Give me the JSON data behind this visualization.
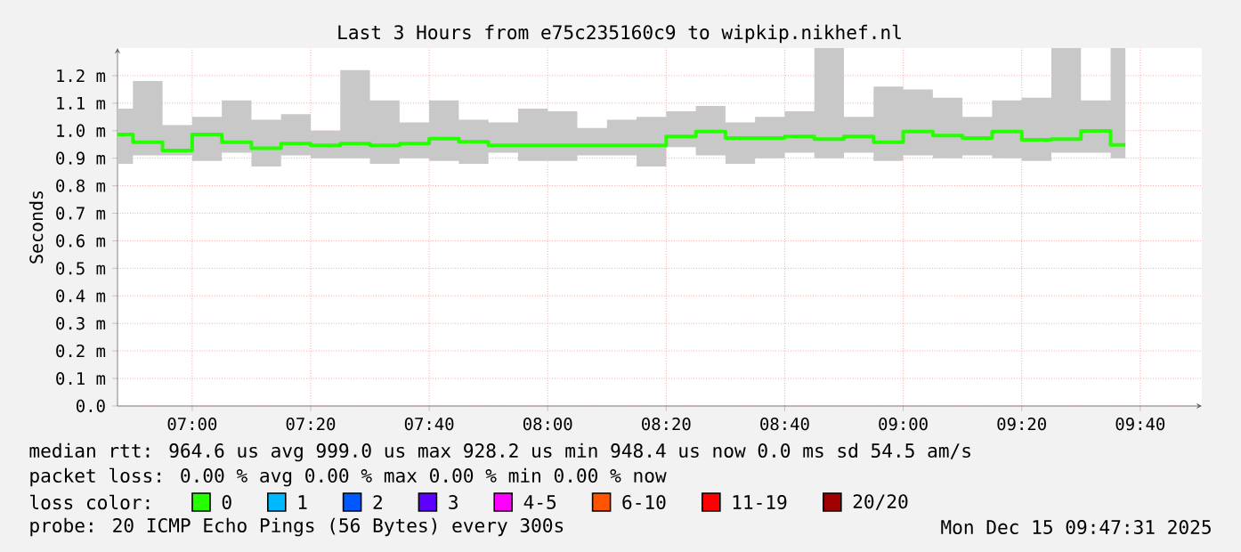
{
  "chart_data": {
    "type": "step",
    "title": "Last 3 Hours from e75c235160c9 to wipkip.nikhef.nl",
    "ylabel": "Seconds",
    "legend_title": "loss color:",
    "legend": "bottom",
    "grid": true,
    "marker": "none",
    "line_style": "solid",
    "x": [
      6.7917,
      6.875,
      6.9583,
      7.0417,
      7.125,
      7.2083,
      7.2917,
      7.375,
      7.4583,
      7.5417,
      7.625,
      7.7083,
      7.7917,
      7.875,
      7.9583,
      8.0417,
      8.125,
      8.2083,
      8.2917,
      8.375,
      8.4583,
      8.5417,
      8.625,
      8.7083,
      8.7917,
      8.875,
      8.9583,
      9.0417,
      9.125,
      9.2083,
      9.2917,
      9.375,
      9.4583,
      9.5417,
      9.625
    ],
    "xlim": [
      6.79,
      9.84
    ],
    "xticks": [
      {
        "value": 7,
        "label": "07:00"
      },
      {
        "value": 7.3333,
        "label": "07:20"
      },
      {
        "value": 7.6667,
        "label": "07:40"
      },
      {
        "value": 8,
        "label": "08:00"
      },
      {
        "value": 8.3333,
        "label": "08:20"
      },
      {
        "value": 8.6667,
        "label": "08:40"
      },
      {
        "value": 9,
        "label": "09:00"
      },
      {
        "value": 9.3333,
        "label": "09:20"
      },
      {
        "value": 9.6667,
        "label": "09:40"
      }
    ],
    "ylim": [
      0,
      1.3
    ],
    "yticks": [
      {
        "value": 0,
        "label": "0.0"
      },
      {
        "value": 0.1,
        "label": "0.1 m"
      },
      {
        "value": 0.2,
        "label": "0.2 m"
      },
      {
        "value": 0.3,
        "label": "0.3 m"
      },
      {
        "value": 0.4,
        "label": "0.4 m"
      },
      {
        "value": 0.5,
        "label": "0.5 m"
      },
      {
        "value": 0.6,
        "label": "0.6 m"
      },
      {
        "value": 0.7,
        "label": "0.7 m"
      },
      {
        "value": 0.8,
        "label": "0.8 m"
      },
      {
        "value": 0.9,
        "label": "0.9 m"
      },
      {
        "value": 1.0,
        "label": "1.0 m"
      },
      {
        "value": 1.1,
        "label": "1.1 m"
      },
      {
        "value": 1.2,
        "label": "1.2 m"
      }
    ],
    "series": [
      {
        "name": "0",
        "color": "#26ff00",
        "values": [
          0.986,
          0.958,
          0.928,
          0.986,
          0.958,
          0.936,
          0.953,
          0.947,
          0.953,
          0.947,
          0.953,
          0.971,
          0.96,
          0.947,
          0.947,
          0.947,
          0.947,
          0.947,
          0.947,
          0.979,
          0.997,
          0.973,
          0.973,
          0.979,
          0.969,
          0.979,
          0.958,
          0.997,
          0.982,
          0.973,
          0.997,
          0.967,
          0.969,
          0.999,
          0.948
        ],
        "upper": [
          1.08,
          1.18,
          1.02,
          1.05,
          1.11,
          1.04,
          1.06,
          1.0,
          1.22,
          1.11,
          1.03,
          1.11,
          1.04,
          1.03,
          1.08,
          1.07,
          1.01,
          1.04,
          1.05,
          1.07,
          1.09,
          1.03,
          1.05,
          1.07,
          1.3,
          1.05,
          1.16,
          1.15,
          1.12,
          1.05,
          1.11,
          1.12,
          1.3,
          1.11,
          1.3
        ],
        "lower": [
          0.88,
          0.91,
          0.91,
          0.89,
          0.92,
          0.87,
          0.91,
          0.9,
          0.9,
          0.88,
          0.9,
          0.89,
          0.88,
          0.92,
          0.89,
          0.89,
          0.91,
          0.91,
          0.87,
          0.94,
          0.91,
          0.88,
          0.9,
          0.92,
          0.9,
          0.92,
          0.89,
          0.91,
          0.9,
          0.91,
          0.9,
          0.89,
          0.92,
          0.92,
          0.9
        ]
      },
      {
        "name": "1",
        "color": "#00b8ff",
        "values": [
          null,
          null,
          null,
          null,
          null,
          null,
          null,
          null,
          null,
          null,
          null,
          null,
          null,
          null,
          null,
          null,
          null,
          null,
          null,
          null,
          null,
          null,
          null,
          null,
          null,
          null,
          null,
          null,
          null,
          null,
          null,
          null,
          null,
          null,
          null
        ]
      },
      {
        "name": "2",
        "color": "#0059ff",
        "values": [
          null,
          null,
          null,
          null,
          null,
          null,
          null,
          null,
          null,
          null,
          null,
          null,
          null,
          null,
          null,
          null,
          null,
          null,
          null,
          null,
          null,
          null,
          null,
          null,
          null,
          null,
          null,
          null,
          null,
          null,
          null,
          null,
          null,
          null,
          null
        ]
      },
      {
        "name": "3",
        "color": "#5e00ff",
        "values": [
          null,
          null,
          null,
          null,
          null,
          null,
          null,
          null,
          null,
          null,
          null,
          null,
          null,
          null,
          null,
          null,
          null,
          null,
          null,
          null,
          null,
          null,
          null,
          null,
          null,
          null,
          null,
          null,
          null,
          null,
          null,
          null,
          null,
          null,
          null
        ]
      },
      {
        "name": "4-5",
        "color": "#ff00ff",
        "values": [
          null,
          null,
          null,
          null,
          null,
          null,
          null,
          null,
          null,
          null,
          null,
          null,
          null,
          null,
          null,
          null,
          null,
          null,
          null,
          null,
          null,
          null,
          null,
          null,
          null,
          null,
          null,
          null,
          null,
          null,
          null,
          null,
          null,
          null,
          null
        ]
      },
      {
        "name": "6-10",
        "color": "#ff5500",
        "values": [
          null,
          null,
          null,
          null,
          null,
          null,
          null,
          null,
          null,
          null,
          null,
          null,
          null,
          null,
          null,
          null,
          null,
          null,
          null,
          null,
          null,
          null,
          null,
          null,
          null,
          null,
          null,
          null,
          null,
          null,
          null,
          null,
          null,
          null,
          null
        ]
      },
      {
        "name": "11-19",
        "color": "#ff0000",
        "values": [
          null,
          null,
          null,
          null,
          null,
          null,
          null,
          null,
          null,
          null,
          null,
          null,
          null,
          null,
          null,
          null,
          null,
          null,
          null,
          null,
          null,
          null,
          null,
          null,
          null,
          null,
          null,
          null,
          null,
          null,
          null,
          null,
          null,
          null,
          null
        ]
      },
      {
        "name": "20/20",
        "color": "#a10000",
        "values": [
          null,
          null,
          null,
          null,
          null,
          null,
          null,
          null,
          null,
          null,
          null,
          null,
          null,
          null,
          null,
          null,
          null,
          null,
          null,
          null,
          null,
          null,
          null,
          null,
          null,
          null,
          null,
          null,
          null,
          null,
          null,
          null,
          null,
          null,
          null
        ]
      }
    ],
    "annotations": [
      "median rtt: 964.6 us avg 999.0 us max 928.2 us min 948.4 us now 0.0 ms sd 54.5 am/s",
      "packet loss: 0.00 % avg 0.00 % max 0.00 % min 0.00 % now",
      "probe: 20 ICMP Echo Pings (56 Bytes) every 300s",
      "Mon Dec 15 09:47:31 2025"
    ]
  }
}
